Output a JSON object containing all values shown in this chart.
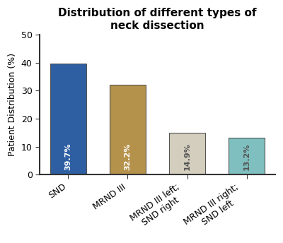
{
  "title": "Distribution of different types of\nneck dissection",
  "categories": [
    "SND",
    "MRND III",
    "MRND III left;\nSND right",
    "MRND III right;\nSND left"
  ],
  "values": [
    39.7,
    32.2,
    14.9,
    13.2
  ],
  "bar_colors": [
    "#2E5FA3",
    "#B5924C",
    "#D4CEBE",
    "#7FBFBF"
  ],
  "bar_labels": [
    "39.7%",
    "32.2%",
    "14.9%",
    "13.2%"
  ],
  "bar_label_colors": [
    "white",
    "white",
    "#555555",
    "#555555"
  ],
  "ylabel": "Patient Distribution (%)",
  "ylim": [
    0,
    50
  ],
  "yticks": [
    0,
    10,
    20,
    30,
    40,
    50
  ],
  "title_fontsize": 11,
  "label_fontsize": 9,
  "tick_fontsize": 9,
  "bar_label_fontsize": 8,
  "background_color": "#ffffff",
  "edge_color": "#555555"
}
